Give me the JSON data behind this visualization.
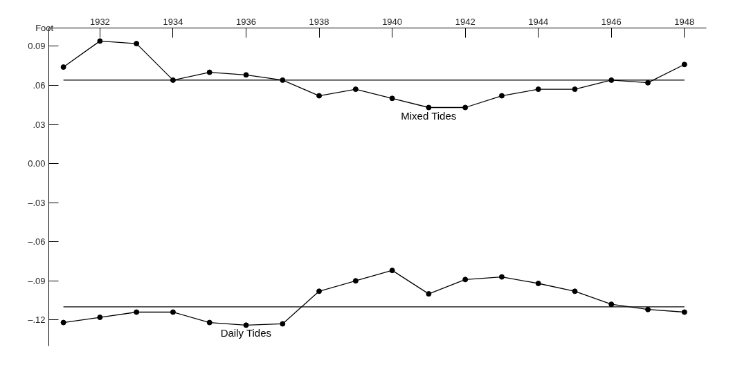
{
  "chart_data": {
    "type": "line",
    "ylabel": "Foot",
    "x": [
      1931,
      1932,
      1933,
      1934,
      1935,
      1936,
      1937,
      1938,
      1939,
      1940,
      1941,
      1942,
      1943,
      1944,
      1945,
      1946,
      1947,
      1948
    ],
    "series": [
      {
        "name": "Mixed Tides",
        "color": "#000000",
        "values": [
          0.074,
          0.094,
          0.092,
          0.064,
          0.07,
          0.068,
          0.064,
          0.052,
          0.057,
          0.05,
          0.043,
          0.043,
          0.052,
          0.057,
          0.057,
          0.064,
          0.062,
          0.076
        ]
      },
      {
        "name": "Daily Tides",
        "color": "#000000",
        "values": [
          -0.122,
          -0.118,
          -0.114,
          -0.114,
          -0.122,
          -0.124,
          -0.123,
          -0.098,
          -0.09,
          -0.082,
          -0.1,
          -0.089,
          -0.087,
          -0.092,
          -0.098,
          -0.108,
          -0.112,
          -0.114
        ]
      }
    ],
    "ref_lines": [
      {
        "axis": "y",
        "value": 0.064,
        "color": "#000000"
      },
      {
        "axis": "y",
        "value": -0.11,
        "color": "#000000"
      }
    ],
    "xlim": [
      1930.6,
      1948.6
    ],
    "xticks": [
      1932,
      1934,
      1936,
      1938,
      1940,
      1942,
      1944,
      1946,
      1948
    ],
    "ylim": [
      -0.14,
      0.104
    ],
    "yticks": [
      {
        "value": 0.09,
        "label": "0.09"
      },
      {
        "value": 0.06,
        "label": ".06"
      },
      {
        "value": 0.03,
        "label": ".03"
      },
      {
        "value": 0.0,
        "label": "0.00"
      },
      {
        "value": -0.03,
        "label": "–.03"
      },
      {
        "value": -0.06,
        "label": "–.06"
      },
      {
        "value": -0.09,
        "label": "–.09"
      },
      {
        "value": -0.12,
        "label": "–.12"
      }
    ],
    "grid": false,
    "marker": "circle",
    "line_style": "solid"
  }
}
